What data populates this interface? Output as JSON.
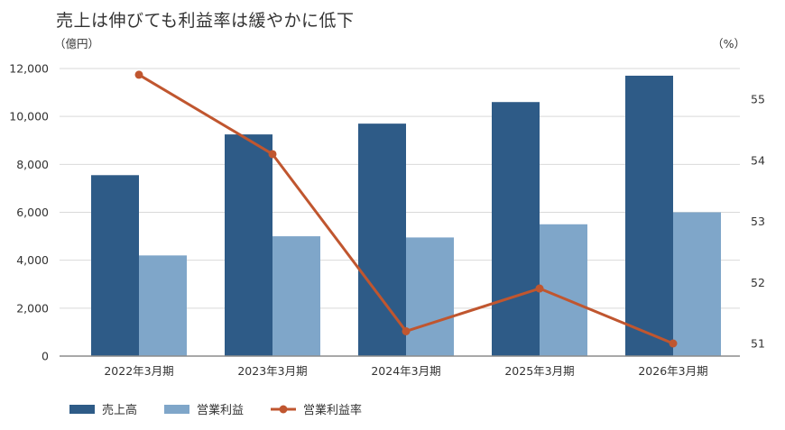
{
  "chart_data": {
    "type": "bar",
    "title": "売上は伸びても利益率は緩やかに低下",
    "categories": [
      "2022年3月期",
      "2023年3月期",
      "2024年3月期",
      "2025年3月期",
      "2026年3月期"
    ],
    "series": [
      {
        "name": "売上高",
        "kind": "bar",
        "axis": "left",
        "color": "#2e5b87",
        "values": [
          7550,
          9250,
          9700,
          10600,
          11700
        ]
      },
      {
        "name": "営業利益",
        "kind": "bar",
        "axis": "left",
        "color": "#7fa6c9",
        "values": [
          4200,
          5000,
          4950,
          5500,
          6000
        ]
      },
      {
        "name": "営業利益率",
        "kind": "line",
        "axis": "right",
        "color": "#c0562f",
        "values": [
          55.4,
          54.1,
          51.2,
          51.9,
          51.0
        ]
      }
    ],
    "y_left": {
      "unit": "（億円）",
      "ylim": [
        0,
        12000
      ],
      "ticks": [
        0,
        2000,
        4000,
        6000,
        8000,
        10000,
        12000
      ],
      "tick_labels": [
        "0",
        "2,000",
        "4,000",
        "6,000",
        "8,000",
        "10,000",
        "12,000"
      ]
    },
    "y_right": {
      "unit": "（%）",
      "ylim": [
        50.8,
        55.6
      ],
      "ticks": [
        51,
        52,
        53,
        54,
        55
      ],
      "tick_labels": [
        "51",
        "52",
        "53",
        "54",
        "55"
      ]
    },
    "grid": true,
    "legend_position": "bottom-left"
  }
}
